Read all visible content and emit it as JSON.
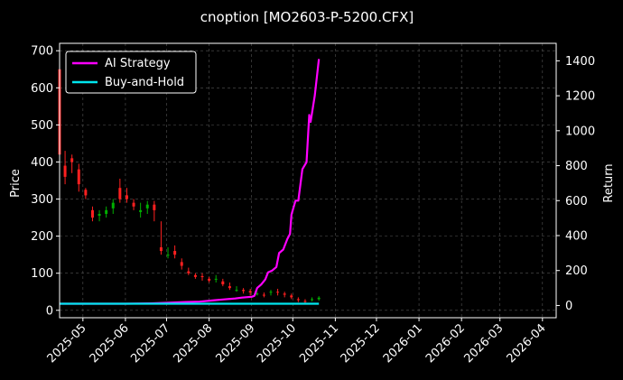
{
  "chart_data": {
    "type": "line",
    "title": "cnoption [MO2603-P-5200.CFX]",
    "ylabel": "Price",
    "y2label": "Return",
    "x_ticks": [
      "2025-05",
      "2025-06",
      "2025-07",
      "2025-08",
      "2025-09",
      "2025-10",
      "2025-11",
      "2025-12",
      "2026-01",
      "2026-02",
      "2026-03",
      "2026-04"
    ],
    "xlim": [
      "2025-04-14",
      "2026-04-11"
    ],
    "ylim": [
      -20,
      720
    ],
    "y_ticks": [
      0,
      100,
      200,
      300,
      400,
      500,
      600,
      700
    ],
    "y2lim": [
      -70,
      1500
    ],
    "y2_ticks": [
      0,
      200,
      400,
      600,
      800,
      1000,
      1200,
      1400
    ],
    "grid": true,
    "legend": {
      "placement": "upper-left"
    },
    "colors": {
      "background": "#000000",
      "up": "#00b000",
      "down": "#ff2020",
      "strategy": "#ff00ff",
      "buy_hold": "#00e5ee",
      "grid": "#555555",
      "axis": "#ffffff"
    },
    "series": [
      {
        "name": "AI Strategy",
        "axis": "right",
        "x": [
          "2025-04-14",
          "2025-05-01",
          "2025-06-01",
          "2025-06-20",
          "2025-07-01",
          "2025-07-15",
          "2025-07-25",
          "2025-08-05",
          "2025-08-12",
          "2025-08-20",
          "2025-08-25",
          "2025-09-01",
          "2025-09-03",
          "2025-09-05",
          "2025-09-08",
          "2025-09-11",
          "2025-09-13",
          "2025-09-16",
          "2025-09-19",
          "2025-09-21",
          "2025-09-24",
          "2025-09-27",
          "2025-09-29",
          "2025-09-30",
          "2025-10-03",
          "2025-10-05",
          "2025-10-08",
          "2025-10-11",
          "2025-10-13",
          "2025-10-14",
          "2025-10-17",
          "2025-10-20"
        ],
        "values": [
          10,
          10,
          10,
          12,
          15,
          20,
          22,
          30,
          35,
          40,
          45,
          50,
          55,
          100,
          120,
          150,
          190,
          200,
          220,
          300,
          320,
          380,
          410,
          520,
          600,
          600,
          780,
          820,
          1090,
          1050,
          1200,
          1410
        ]
      },
      {
        "name": "Buy-and-Hold",
        "axis": "right",
        "x": [
          "2025-04-14",
          "2025-10-20"
        ],
        "values": [
          10,
          10
        ]
      },
      {
        "name": "",
        "type": "candlestick",
        "axis": "left",
        "x": [
          "2025-04-14",
          "2025-04-18",
          "2025-04-23",
          "2025-04-28",
          "2025-05-03",
          "2025-05-08",
          "2025-05-13",
          "2025-05-18",
          "2025-05-23",
          "2025-05-28",
          "2025-06-02",
          "2025-06-07",
          "2025-06-12",
          "2025-06-17",
          "2025-06-22",
          "2025-06-27",
          "2025-07-02",
          "2025-07-07",
          "2025-07-12",
          "2025-07-17",
          "2025-07-22",
          "2025-07-27",
          "2025-08-01",
          "2025-08-06",
          "2025-08-11",
          "2025-08-16",
          "2025-08-21",
          "2025-08-26",
          "2025-08-31",
          "2025-09-05",
          "2025-09-10",
          "2025-09-15",
          "2025-09-20",
          "2025-09-25",
          "2025-09-30",
          "2025-10-05",
          "2025-10-10",
          "2025-10-15",
          "2025-10-20"
        ],
        "open": [
          650,
          390,
          410,
          380,
          325,
          270,
          255,
          260,
          275,
          330,
          310,
          290,
          265,
          275,
          285,
          170,
          150,
          160,
          130,
          105,
          95,
          92,
          85,
          85,
          78,
          65,
          55,
          55,
          52,
          45,
          42,
          48,
          50,
          45,
          40,
          30,
          25,
          28,
          30
        ],
        "close": [
          420,
          360,
          400,
          340,
          310,
          250,
          260,
          270,
          290,
          300,
          300,
          280,
          270,
          285,
          270,
          160,
          150,
          150,
          120,
          100,
          90,
          90,
          80,
          85,
          70,
          60,
          55,
          52,
          48,
          45,
          40,
          50,
          48,
          42,
          35,
          28,
          24,
          30,
          34
        ],
        "high": [
          720,
          430,
          420,
          395,
          330,
          280,
          270,
          280,
          300,
          355,
          330,
          300,
          290,
          295,
          295,
          240,
          170,
          175,
          140,
          115,
          100,
          100,
          90,
          95,
          85,
          75,
          65,
          60,
          58,
          50,
          48,
          55,
          58,
          50,
          45,
          35,
          30,
          35,
          38
        ],
        "low": [
          400,
          340,
          370,
          320,
          300,
          240,
          240,
          250,
          260,
          290,
          290,
          270,
          250,
          260,
          240,
          150,
          140,
          140,
          110,
          95,
          85,
          80,
          75,
          75,
          65,
          55,
          50,
          45,
          40,
          40,
          35,
          40,
          40,
          35,
          30,
          22,
          20,
          24,
          26
        ]
      }
    ]
  }
}
